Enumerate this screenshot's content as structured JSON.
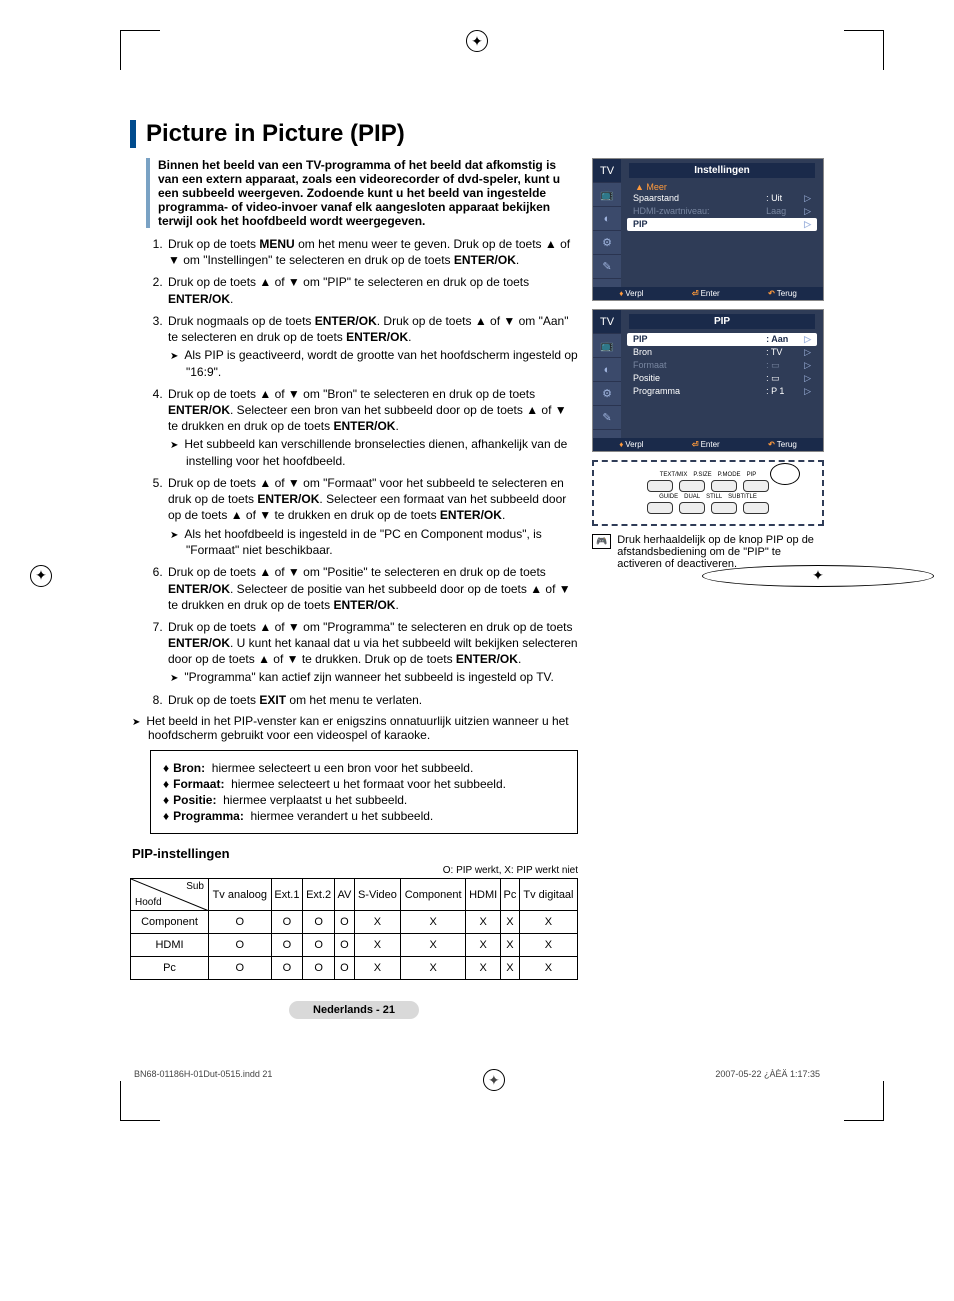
{
  "title": "Picture in Picture (PIP)",
  "intro": "Binnen het beeld van een TV-programma of het beeld dat afkomstig is van een extern apparaat, zoals een videorecorder of dvd-speler, kunt u een subbeeld weergeven. Zodoende kunt u het beeld van ingestelde programma- of video-invoer vanaf elk aangesloten apparaat bekijken terwijl ook het hoofdbeeld wordt weergegeven.",
  "steps": [
    {
      "text": "Druk op de toets MENU om het menu weer te geven. Druk op de toets ▲ of ▼ om \"Instellingen\" te selecteren en druk op de toets ENTER/OK."
    },
    {
      "text": "Druk op de toets ▲ of ▼ om \"PIP\" te selecteren en druk op de toets ENTER/OK."
    },
    {
      "text": "Druk nogmaals op de toets ENTER/OK. Druk op de toets ▲ of ▼ om \"Aan\" te selecteren en druk op de toets ENTER/OK.",
      "sub": "Als PIP is geactiveerd, wordt de grootte van het hoofdscherm ingesteld op \"16:9\"."
    },
    {
      "text": "Druk op de toets ▲ of ▼ om \"Bron\" te selecteren en druk op de toets ENTER/OK. Selecteer een bron van het subbeeld door op de toets ▲ of ▼ te drukken en druk op de toets ENTER/OK.",
      "sub": "Het subbeeld kan verschillende bronselecties dienen, afhankelijk van de instelling voor het hoofdbeeld."
    },
    {
      "text": "Druk op de toets ▲ of ▼ om \"Formaat\" voor het subbeeld te selecteren en druk op de toets ENTER/OK. Selecteer een formaat van het subbeeld door op de toets ▲ of ▼ te drukken en druk op de toets ENTER/OK.",
      "sub": "Als het hoofdbeeld is ingesteld in de \"PC en Component modus\", is \"Formaat\" niet beschikbaar."
    },
    {
      "text": "Druk op de toets ▲ of ▼ om \"Positie\" te selecteren en druk op de toets ENTER/OK. Selecteer de positie van het subbeeld door op de toets ▲ of ▼ te drukken en druk op de toets ENTER/OK."
    },
    {
      "text": "Druk op de toets ▲ of ▼ om \"Programma\" te selecteren en druk op de toets ENTER/OK. U kunt het kanaal dat u via het subbeeld wilt bekijken selecteren door op de toets ▲ of ▼ te drukken. Druk op de toets ENTER/OK.",
      "sub": "\"Programma\" kan actief zijn wanneer het subbeeld is ingesteld op TV."
    },
    {
      "text": "Druk op de toets EXIT om het menu te verlaten."
    }
  ],
  "finalnote": "Het beeld in het PIP-venster kan er enigszins onnatuurlijk uitzien wanneer u het hoofdscherm gebruikt voor een videospel of karaoke.",
  "defs": [
    {
      "k": "Bron:",
      "v": "hiermee selecteert u een bron voor het subbeeld."
    },
    {
      "k": "Formaat:",
      "v": "hiermee selecteert u het formaat voor het subbeeld."
    },
    {
      "k": "Positie:",
      "v": "hiermee verplaatst u het subbeeld."
    },
    {
      "k": "Programma:",
      "v": "hiermee verandert u het subbeeld."
    }
  ],
  "table_title": "PIP-instellingen",
  "table_legend": "O: PIP werkt, X: PIP werkt niet",
  "table": {
    "diag": {
      "sub": "Sub",
      "main": "Hoofd"
    },
    "cols": [
      "Tv analoog",
      "Ext.1",
      "Ext.2",
      "AV",
      "S-Video",
      "Component",
      "HDMI",
      "Pc",
      "Tv digitaal"
    ],
    "rows": [
      {
        "h": "Component",
        "c": [
          "O",
          "O",
          "O",
          "O",
          "X",
          "X",
          "X",
          "X",
          "X"
        ]
      },
      {
        "h": "HDMI",
        "c": [
          "O",
          "O",
          "O",
          "O",
          "X",
          "X",
          "X",
          "X",
          "X"
        ]
      },
      {
        "h": "Pc",
        "c": [
          "O",
          "O",
          "O",
          "O",
          "X",
          "X",
          "X",
          "X",
          "X"
        ]
      }
    ]
  },
  "footer": "Nederlands - 21",
  "meta_left": "BN68-01186H-01Dut-0515.indd   21",
  "meta_right": "2007-05-22   ¿ÀÈÄ 1:17:35",
  "osd1": {
    "tab": "TV",
    "title": "Instellingen",
    "up": "▲ Meer",
    "rows": [
      {
        "k": "Spaarstand",
        "v": ": Uit",
        "cls": ""
      },
      {
        "k": "HDMI-zwartniveau:",
        "v": "Laag",
        "cls": "dim"
      },
      {
        "k": "PIP",
        "v": "",
        "cls": "sel"
      }
    ],
    "foot": {
      "a": "Verpl",
      "b": "Enter",
      "c": "Terug"
    }
  },
  "osd2": {
    "tab": "TV",
    "title": "PIP",
    "rows": [
      {
        "k": "PIP",
        "v": ": Aan",
        "cls": "sel"
      },
      {
        "k": "Bron",
        "v": ": TV",
        "cls": ""
      },
      {
        "k": "Formaat",
        "v": ": ▭",
        "cls": "dim"
      },
      {
        "k": "Positie",
        "v": ": ▭",
        "cls": ""
      },
      {
        "k": "Programma",
        "v": ": P 1",
        "cls": ""
      }
    ],
    "foot": {
      "a": "Verpl",
      "b": "Enter",
      "c": "Terug"
    }
  },
  "remote": {
    "row1": [
      "TEXT/MIX",
      "P.SIZE",
      "P.MODE",
      "PIP"
    ],
    "row2": [
      "GUIDE",
      "DUAL",
      "STILL",
      "SUBTITLE"
    ]
  },
  "tip": "Druk herhaaldelijk op de knop PIP op de afstandsbediening om de \"PIP\" te activeren of deactiveren.",
  "colors": {
    "primary": "#004b8d",
    "secondary": "#7aa2c4",
    "osd_bg": "#2f3c57",
    "osd_dark": "#1a2a4a",
    "accent": "#ff9a3c"
  }
}
